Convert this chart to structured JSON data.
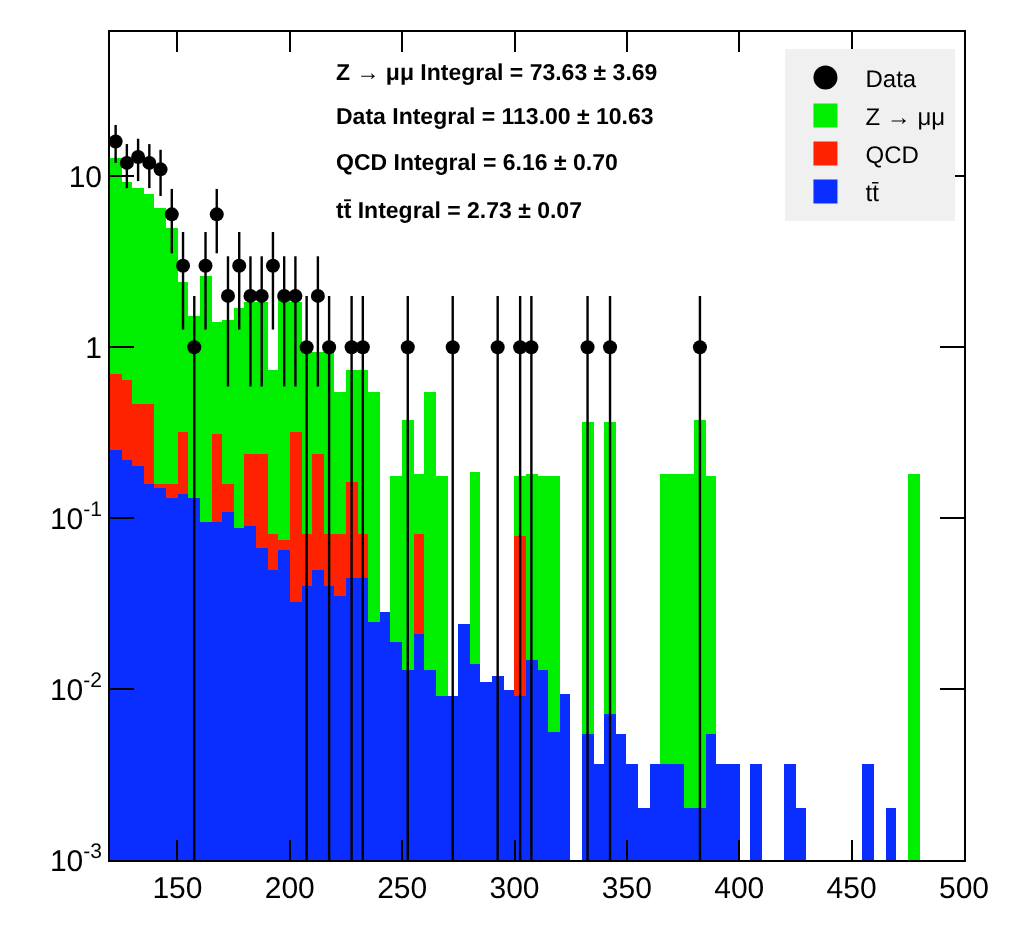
{
  "chart_data": {
    "type": "bar",
    "stacked": true,
    "legend": "top right",
    "grid": false,
    "log": "y",
    "annotations": [
      "Z → μμ Integral = 73.63 ± 3.69",
      "Data Integral = 113.00 ± 10.63",
      "QCD Integral = 6.16 ± 0.70",
      "tt̄ Integral = 2.73 ± 0.07"
    ],
    "x": [
      122.5,
      127.5,
      132.5,
      137.5,
      142.5,
      147.5,
      152.5,
      157.5,
      162.5,
      167.5,
      172.5,
      177.5,
      182.5,
      187.5,
      192.5,
      197.5,
      202.5,
      207.5,
      212.5,
      217.5,
      222.5,
      227.5,
      232.5,
      237.5,
      242.5,
      247.5,
      252.5,
      257.5,
      262.5,
      267.5,
      272.5,
      277.5,
      282.5,
      287.5,
      292.5,
      297.5,
      302.5,
      307.5,
      312.5,
      317.5,
      322.5,
      327.5,
      332.5,
      337.5,
      342.5,
      347.5,
      352.5,
      357.5,
      362.5,
      367.5,
      372.5,
      377.5,
      382.5,
      387.5,
      392.5,
      397.5,
      402.5,
      407.5,
      412.5,
      417.5,
      422.5,
      427.5,
      432.5,
      437.5,
      442.5,
      447.5,
      452.5,
      457.5,
      462.5,
      467.5,
      472.5,
      477.5
    ],
    "xlim": [
      120,
      500
    ],
    "xticks": [
      150,
      200,
      250,
      300,
      350,
      400,
      450,
      500
    ],
    "ylim": [
      0.001,
      70
    ],
    "yticks": [
      {
        "value": 0.001,
        "label": "10$^{-3}$"
      },
      {
        "value": 0.01,
        "label": "10$^{-2}$"
      },
      {
        "value": 0.1,
        "label": "10$^{-1}$"
      },
      {
        "value": 1,
        "label": "1"
      },
      {
        "value": 10,
        "label": "10"
      }
    ],
    "series": [
      {
        "name": "tt̄",
        "color": "#0a2eff",
        "values": [
          0.25,
          0.22,
          0.2,
          0.16,
          0.15,
          0.13,
          0.14,
          0.13,
          0.095,
          0.095,
          0.11,
          0.087,
          0.09,
          0.067,
          0.05,
          0.065,
          0.032,
          0.04,
          0.05,
          0.04,
          0.035,
          0.045,
          0.045,
          0.025,
          0.028,
          0.019,
          0.013,
          0.021,
          0.013,
          0.009,
          0.009,
          0.024,
          0.014,
          0.011,
          0.012,
          0.01,
          0.009,
          0.015,
          0.013,
          0.0056,
          0.0093,
          null,
          0.0055,
          0.0036,
          0.0072,
          0.0055,
          0.0036,
          0.002,
          0.0036,
          0.0036,
          0.0036,
          0.002,
          0.002,
          0.0055,
          0.0036,
          0.0036,
          null,
          0.0036,
          null,
          null,
          0.0036,
          0.002,
          null,
          null,
          null,
          null,
          null,
          0.0036,
          null,
          0.002,
          null,
          null
        ]
      },
      {
        "name": "QCD",
        "color": "#ff2200",
        "values": [
          0.44,
          0.43,
          0.27,
          0.31,
          0.01,
          0.03,
          0.18,
          null,
          null,
          0.22,
          0.05,
          null,
          0.15,
          0.17,
          0.03,
          0.01,
          0.29,
          0.04,
          0.19,
          0.04,
          0.045,
          0.12,
          0.035,
          null,
          null,
          null,
          null,
          0.06,
          null,
          null,
          null,
          null,
          null,
          null,
          null,
          null,
          0.07,
          null,
          null,
          null,
          null,
          null,
          null,
          null,
          null,
          null,
          null,
          null,
          null,
          null,
          null,
          null,
          null,
          null,
          null,
          null,
          null,
          null,
          null,
          null,
          null,
          null,
          null,
          null,
          null,
          null,
          null,
          null,
          null,
          null,
          null,
          null
        ]
      },
      {
        "name": "Z → μμ",
        "color": "#00ee00",
        "values": [
          12.3,
          8.7,
          8.0,
          7.5,
          6.4,
          4.8,
          2.1,
          1.4,
          2.5,
          1.1,
          1.3,
          1.6,
          1.6,
          1.6,
          0.66,
          1.8,
          1.5,
          0.89,
          0.69,
          0.85,
          0.47,
          0.58,
          0.66,
          0.52,
          null,
          0.16,
          0.36,
          0.1,
          0.54,
          0.17,
          null,
          null,
          0.17,
          null,
          null,
          null,
          0.1,
          0.165,
          0.165,
          0.17,
          null,
          null,
          0.36,
          null,
          0.36,
          null,
          null,
          null,
          null,
          0.18,
          0.18,
          0.18,
          0.37,
          0.17,
          null,
          null,
          null,
          null,
          null,
          null,
          null,
          null,
          null,
          null,
          null,
          null,
          null,
          null,
          null,
          null,
          null,
          0.18
        ]
      },
      {
        "name": "Data",
        "type": "scatter",
        "color": "#000000",
        "marker": "circle",
        "x": [
          122.5,
          127.5,
          132.5,
          137.5,
          142.5,
          147.5,
          152.5,
          157.5,
          162.5,
          167.5,
          172.5,
          177.5,
          182.5,
          187.5,
          192.5,
          197.5,
          202.5,
          207.5,
          212.5,
          217.5,
          227.5,
          232.5,
          252.5,
          272.5,
          292.5,
          302.5,
          307.5,
          332.5,
          342.5,
          382.5
        ],
        "values": [
          16,
          12,
          13,
          12,
          11,
          6,
          3,
          1,
          3,
          6,
          2,
          3,
          2,
          2,
          3,
          2,
          2,
          1,
          2,
          1,
          1,
          1,
          1,
          1,
          1,
          1,
          1,
          1,
          1,
          1
        ],
        "errors": [
          4,
          3.46,
          3.61,
          3.46,
          3.32,
          2.45,
          1.73,
          [
            0.999,
            1
          ],
          1.73,
          2.45,
          1.41,
          1.73,
          1.41,
          1.41,
          1.73,
          1.41,
          1.41,
          [
            0.999,
            1
          ],
          1.41,
          [
            0.999,
            1
          ],
          [
            0.999,
            1
          ],
          [
            0.999,
            1
          ],
          [
            0.999,
            1
          ],
          [
            0.999,
            1
          ],
          [
            0.999,
            1
          ],
          [
            0.999,
            1
          ],
          [
            0.999,
            1
          ],
          [
            0.999,
            1
          ],
          [
            0.999,
            1
          ],
          [
            0.999,
            1
          ]
        ]
      }
    ]
  }
}
